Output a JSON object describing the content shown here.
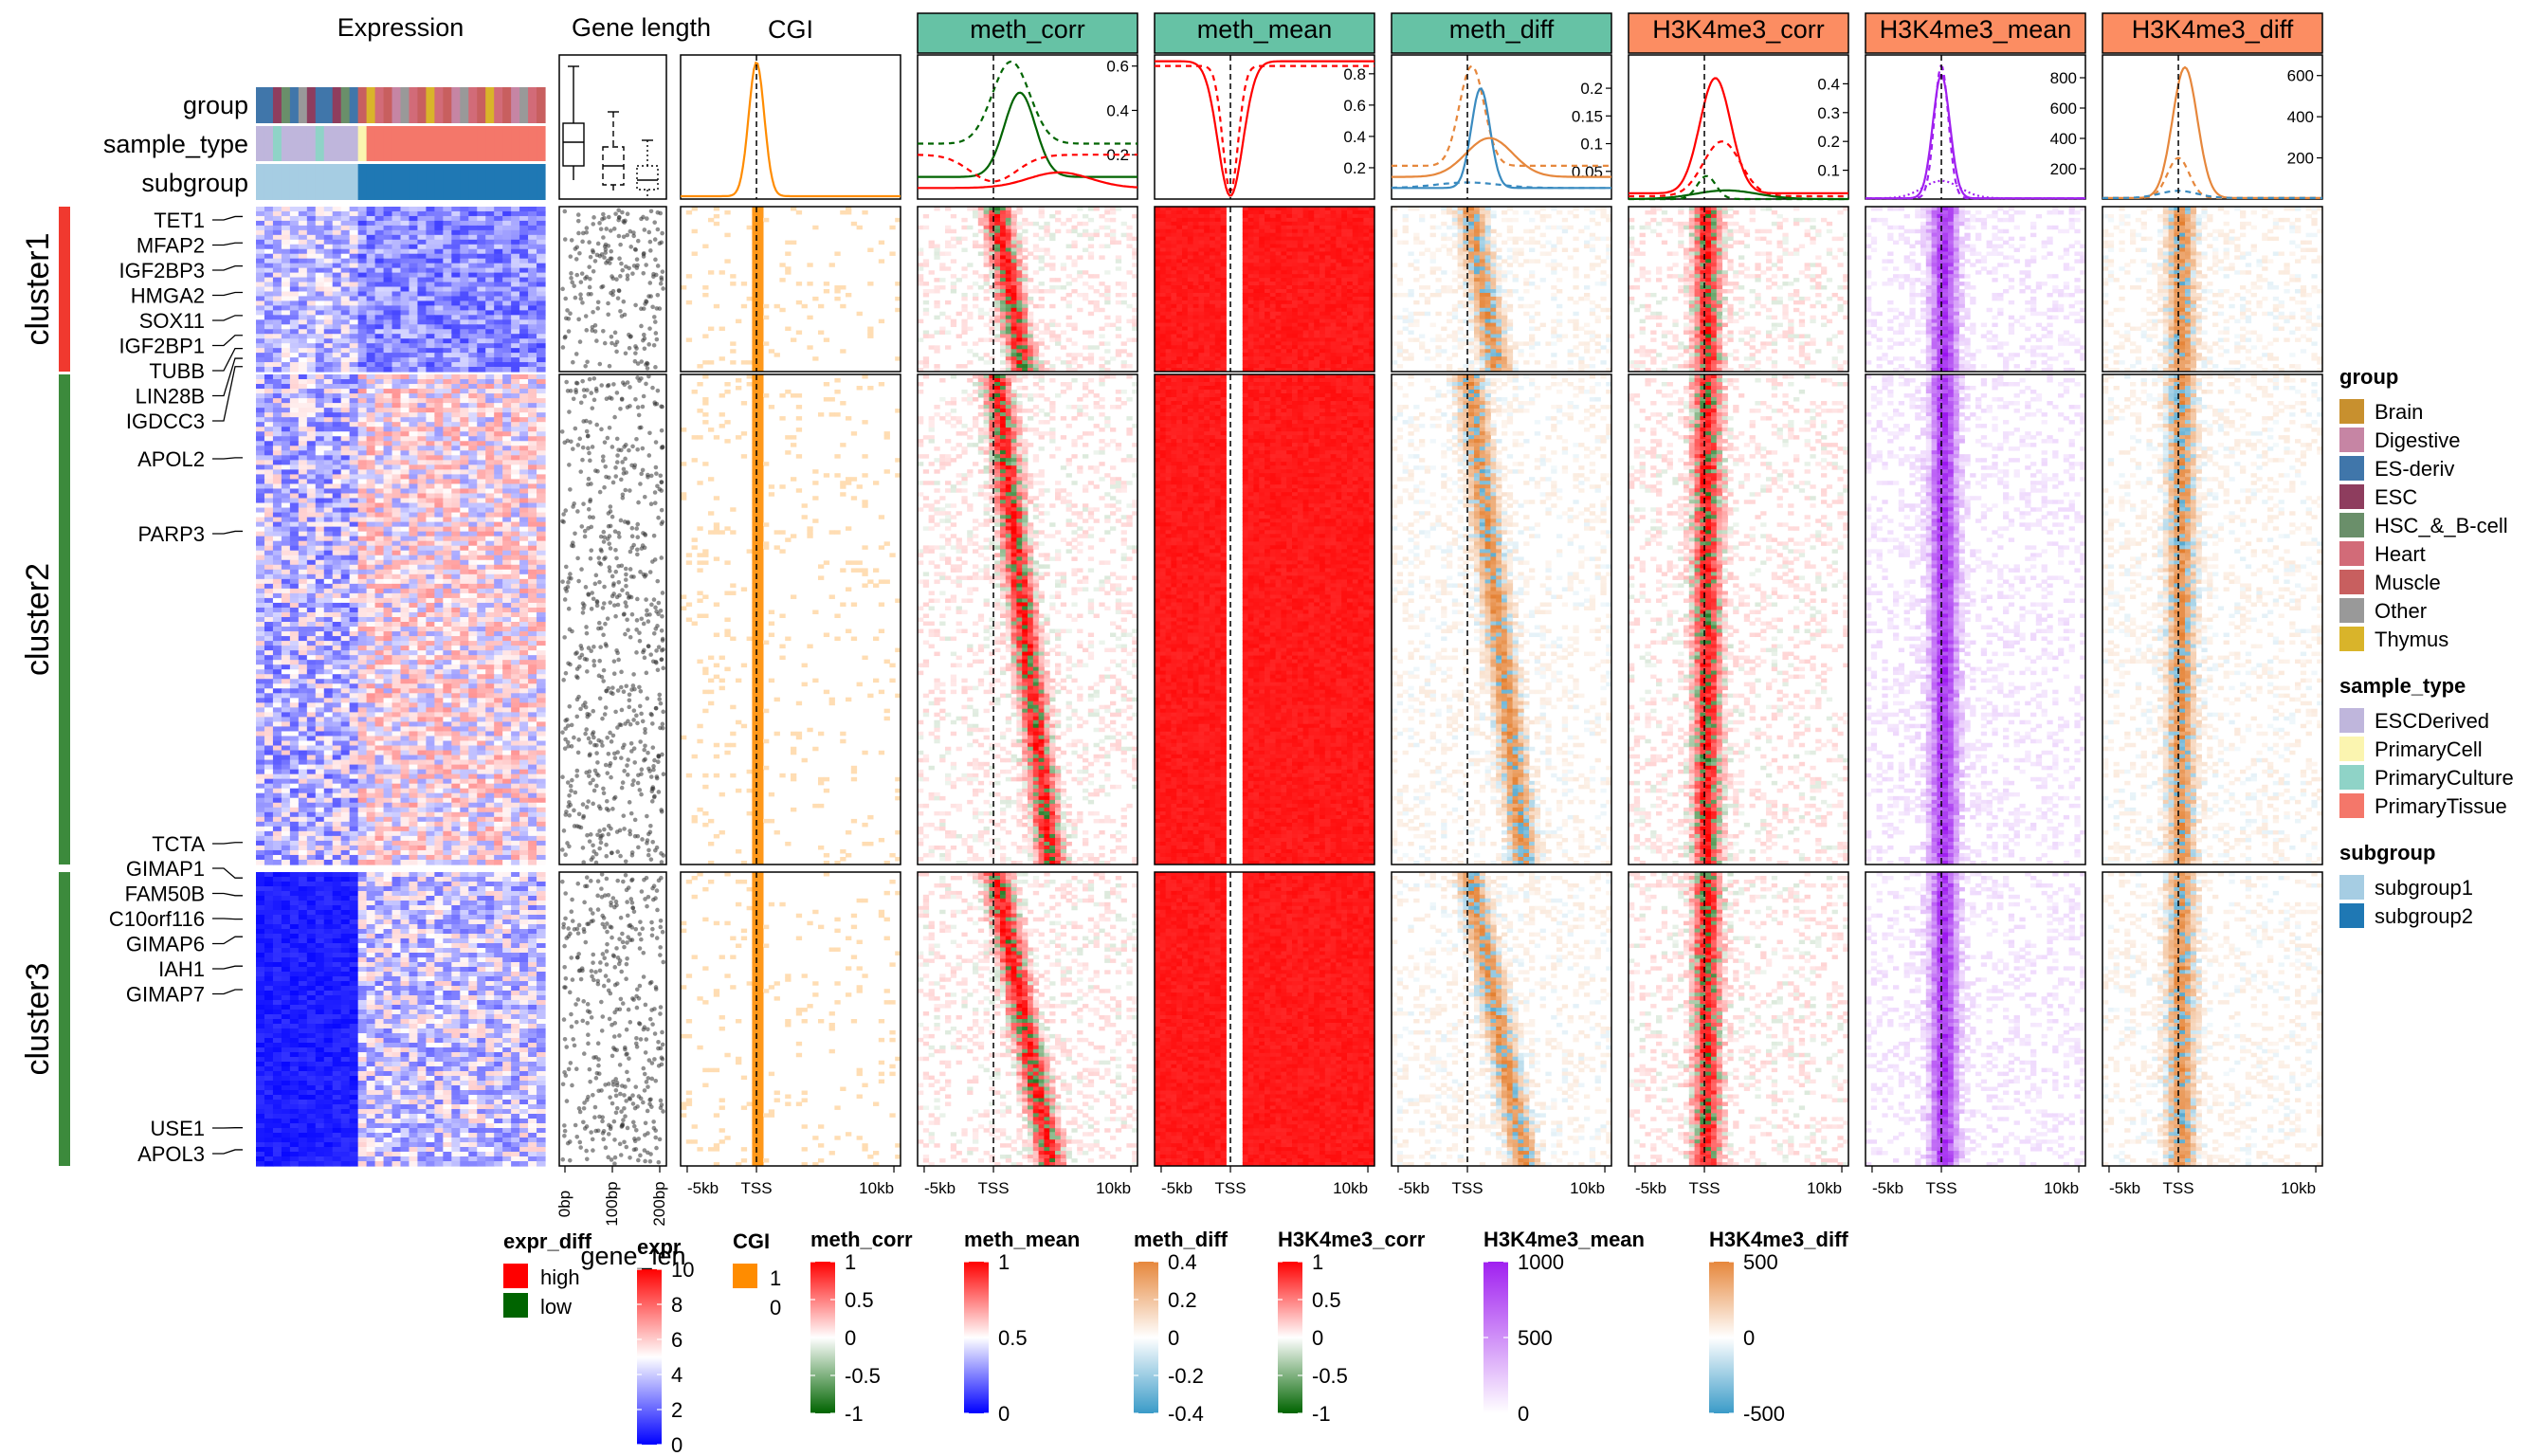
{
  "chart_data": {
    "type": "heatmap",
    "title": "",
    "clusters": [
      {
        "name": "cluster1",
        "color": "#f0392f",
        "row_share": 0.14
      },
      {
        "name": "cluster2",
        "color": "#3c8a3c",
        "row_share": 0.5
      },
      {
        "name": "cluster3",
        "color": "#3c8a3c",
        "row_share": 0.3
      }
    ],
    "annotation_rows": [
      "group",
      "sample_type",
      "subgroup"
    ],
    "expression_title": "Expression",
    "gene_length_title": "Gene length",
    "gene_length_ticks": [
      "0bp",
      "100bp",
      "200bp"
    ],
    "gene_length_axis_label": "gene_len",
    "genes": [
      {
        "name": "TET1",
        "cluster": 0,
        "pos": 0.06
      },
      {
        "name": "MFAP2",
        "cluster": 0,
        "pos": 0.22
      },
      {
        "name": "IGF2BP3",
        "cluster": 0,
        "pos": 0.36
      },
      {
        "name": "HMGA2",
        "cluster": 0,
        "pos": 0.52
      },
      {
        "name": "SOX11",
        "cluster": 0,
        "pos": 0.66
      },
      {
        "name": "IGF2BP1",
        "cluster": 0,
        "pos": 0.78
      },
      {
        "name": "TUBB",
        "cluster": 0,
        "pos": 0.86
      },
      {
        "name": "LIN28B",
        "cluster": 0,
        "pos": 0.92
      },
      {
        "name": "IGDCC3",
        "cluster": 0,
        "pos": 0.97
      },
      {
        "name": "APOL2",
        "cluster": 1,
        "pos": 0.17
      },
      {
        "name": "PARP3",
        "cluster": 1,
        "pos": 0.32
      },
      {
        "name": "TCTA",
        "cluster": 1,
        "pos": 0.955
      },
      {
        "name": "GIMAP1",
        "cluster": 2,
        "pos": 0.02
      },
      {
        "name": "FAM50B",
        "cluster": 2,
        "pos": 0.08
      },
      {
        "name": "C10orf116",
        "cluster": 2,
        "pos": 0.16
      },
      {
        "name": "GIMAP6",
        "cluster": 2,
        "pos": 0.22
      },
      {
        "name": "IAH1",
        "cluster": 2,
        "pos": 0.32
      },
      {
        "name": "GIMAP7",
        "cluster": 2,
        "pos": 0.4
      },
      {
        "name": "USE1",
        "cluster": 2,
        "pos": 0.87
      },
      {
        "name": "APOL3",
        "cluster": 2,
        "pos": 0.945
      }
    ],
    "x_ticks": [
      "-5kb",
      "TSS",
      "10kb"
    ],
    "profiles": [
      {
        "name": "CGI",
        "header_style": "plain",
        "header_color": "",
        "yticks": [],
        "ylim": [
          0,
          1
        ],
        "lines": [
          {
            "color": "#ff8c00",
            "dash": "",
            "peak": 0.95,
            "base": 0.02,
            "width": 0.05,
            "offset": 0
          }
        ]
      },
      {
        "name": "meth_corr",
        "header_style": "box",
        "header_color": "#66c2a5",
        "yticks": [
          0.2,
          0.4,
          0.6
        ],
        "ylim": [
          0,
          0.65
        ],
        "lines": [
          {
            "color": "#006400",
            "dash": "6,5",
            "peak": 0.62,
            "base": 0.25,
            "width": 0.12,
            "offset": 0.08
          },
          {
            "color": "#006400",
            "dash": "",
            "peak": 0.48,
            "base": 0.1,
            "width": 0.1,
            "offset": 0.12
          },
          {
            "color": "#ff0000",
            "dash": "6,5",
            "peak": 0.08,
            "base": 0.2,
            "width": 0.15,
            "offset": 0
          },
          {
            "color": "#ff0000",
            "dash": "",
            "peak": 0.12,
            "base": 0.05,
            "width": 0.2,
            "offset": 0.3
          }
        ]
      },
      {
        "name": "meth_mean",
        "header_style": "box",
        "header_color": "#66c2a5",
        "yticks": [
          0.2,
          0.4,
          0.6,
          0.8
        ],
        "ylim": [
          0,
          0.92
        ],
        "lines": [
          {
            "color": "#ff0000",
            "dash": "",
            "peak": 0.02,
            "base": 0.88,
            "width": 0.08,
            "offset": 0
          },
          {
            "color": "#ff0000",
            "dash": "6,5",
            "peak": 0.05,
            "base": 0.85,
            "width": 0.05,
            "offset": 0
          }
        ]
      },
      {
        "name": "meth_diff",
        "header_style": "box",
        "header_color": "#66c2a5",
        "yticks": [
          0.05,
          0.1,
          0.15,
          0.2
        ],
        "ylim": [
          0,
          0.26
        ],
        "lines": [
          {
            "color": "#e6873c",
            "dash": "6,5",
            "peak": 0.24,
            "base": 0.06,
            "width": 0.08,
            "offset": 0.02
          },
          {
            "color": "#3a8bc0",
            "dash": "",
            "peak": 0.2,
            "base": 0.02,
            "width": 0.06,
            "offset": 0.06
          },
          {
            "color": "#e6873c",
            "dash": "",
            "peak": 0.11,
            "base": 0.04,
            "width": 0.15,
            "offset": 0.1
          },
          {
            "color": "#3a8bc0",
            "dash": "6,5",
            "peak": 0.03,
            "base": 0.02,
            "width": 0.2,
            "offset": 0
          }
        ]
      },
      {
        "name": "H3K4me3_corr",
        "header_style": "box",
        "header_color": "#fc8d62",
        "yticks": [
          0.1,
          0.2,
          0.3,
          0.4
        ],
        "ylim": [
          0,
          0.5
        ],
        "lines": [
          {
            "color": "#ff0000",
            "dash": "",
            "peak": 0.42,
            "base": 0.02,
            "width": 0.1,
            "offset": 0.05
          },
          {
            "color": "#ff0000",
            "dash": "6,5",
            "peak": 0.2,
            "base": 0.01,
            "width": 0.12,
            "offset": 0.08
          },
          {
            "color": "#006400",
            "dash": "6,5",
            "peak": 0.08,
            "base": 0.0,
            "width": 0.06,
            "offset": 0.01
          },
          {
            "color": "#006400",
            "dash": "",
            "peak": 0.03,
            "base": 0.0,
            "width": 0.2,
            "offset": 0.1
          }
        ]
      },
      {
        "name": "H3K4me3_mean",
        "header_style": "box",
        "header_color": "#fc8d62",
        "yticks": [
          200,
          400,
          600,
          800
        ],
        "ylim": [
          0,
          950
        ],
        "lines": [
          {
            "color": "#a020f0",
            "dash": "",
            "peak": 820,
            "base": 5,
            "width": 0.055,
            "offset": 0
          },
          {
            "color": "#a020f0",
            "dash": "6,5",
            "peak": 880,
            "base": 5,
            "width": 0.045,
            "offset": 0
          },
          {
            "color": "#a020f0",
            "dash": "2,3",
            "peak": 120,
            "base": 5,
            "width": 0.12,
            "offset": 0
          }
        ]
      },
      {
        "name": "H3K4me3_diff",
        "header_style": "box",
        "header_color": "#fc8d62",
        "yticks": [
          200,
          400,
          600
        ],
        "ylim": [
          0,
          700
        ],
        "lines": [
          {
            "color": "#e6873c",
            "dash": "",
            "peak": 640,
            "base": 5,
            "width": 0.08,
            "offset": 0.03
          },
          {
            "color": "#e6873c",
            "dash": "6,5",
            "peak": 200,
            "base": 5,
            "width": 0.07,
            "offset": 0
          },
          {
            "color": "#3a8bc0",
            "dash": "6,5",
            "peak": 40,
            "base": 5,
            "width": 0.12,
            "offset": 0
          }
        ]
      }
    ],
    "legends": {
      "group": [
        {
          "label": "Brain",
          "color": "#c8902e"
        },
        {
          "label": "Digestive",
          "color": "#c685a4"
        },
        {
          "label": "ES-deriv",
          "color": "#4076aa"
        },
        {
          "label": "ESC",
          "color": "#8e3d5e"
        },
        {
          "label": "HSC_&_B-cell",
          "color": "#6a8f6a"
        },
        {
          "label": "Heart",
          "color": "#d26b78"
        },
        {
          "label": "Muscle",
          "color": "#c85f5f"
        },
        {
          "label": "Other",
          "color": "#999999"
        },
        {
          "label": "Thymus",
          "color": "#d9b42a"
        }
      ],
      "sample_type": [
        {
          "label": "ESCDerived",
          "color": "#bfb6dc"
        },
        {
          "label": "PrimaryCell",
          "color": "#fbf5b0"
        },
        {
          "label": "PrimaryCulture",
          "color": "#8fd3c7"
        },
        {
          "label": "PrimaryTissue",
          "color": "#f4776a"
        }
      ],
      "subgroup": [
        {
          "label": "subgroup1",
          "color": "#a6cde3"
        },
        {
          "label": "subgroup2",
          "color": "#1f78b4"
        }
      ],
      "expr_diff": [
        {
          "label": "high",
          "color": "#ff0000"
        },
        {
          "label": "low",
          "color": "#006400"
        }
      ],
      "expr": {
        "ticks": [
          "10",
          "8",
          "6",
          "4",
          "2",
          "0"
        ],
        "colors": [
          "#ff0000",
          "#ffffff",
          "#0000ff"
        ]
      },
      "CGI": {
        "ticks": [
          "1",
          "0"
        ],
        "color": "#ff8c00"
      },
      "meth_corr": {
        "ticks": [
          "1",
          "0.5",
          "0",
          "-0.5",
          "-1"
        ],
        "colors": [
          "#ff0000",
          "#ffffff",
          "#006400"
        ]
      },
      "meth_mean": {
        "ticks": [
          "1",
          "0.5",
          "0"
        ],
        "colors": [
          "#ff0000",
          "#ffffff",
          "#0000ff"
        ]
      },
      "meth_diff": {
        "ticks": [
          "0.4",
          "0.2",
          "0",
          "-0.2",
          "-0.4"
        ],
        "colors": [
          "#e6873c",
          "#ffffff",
          "#3a9bc8"
        ]
      },
      "H3K4me3_corr": {
        "ticks": [
          "1",
          "0.5",
          "0",
          "-0.5",
          "-1"
        ],
        "colors": [
          "#ff0000",
          "#ffffff",
          "#006400"
        ]
      },
      "H3K4me3_mean": {
        "ticks": [
          "1000",
          "500",
          "0"
        ],
        "colors": [
          "#a020f0",
          "#ffffff"
        ]
      },
      "H3K4me3_diff": {
        "ticks": [
          "500",
          "0",
          "-500"
        ],
        "colors": [
          "#e6873c",
          "#ffffff",
          "#3a9bc8"
        ]
      }
    }
  }
}
